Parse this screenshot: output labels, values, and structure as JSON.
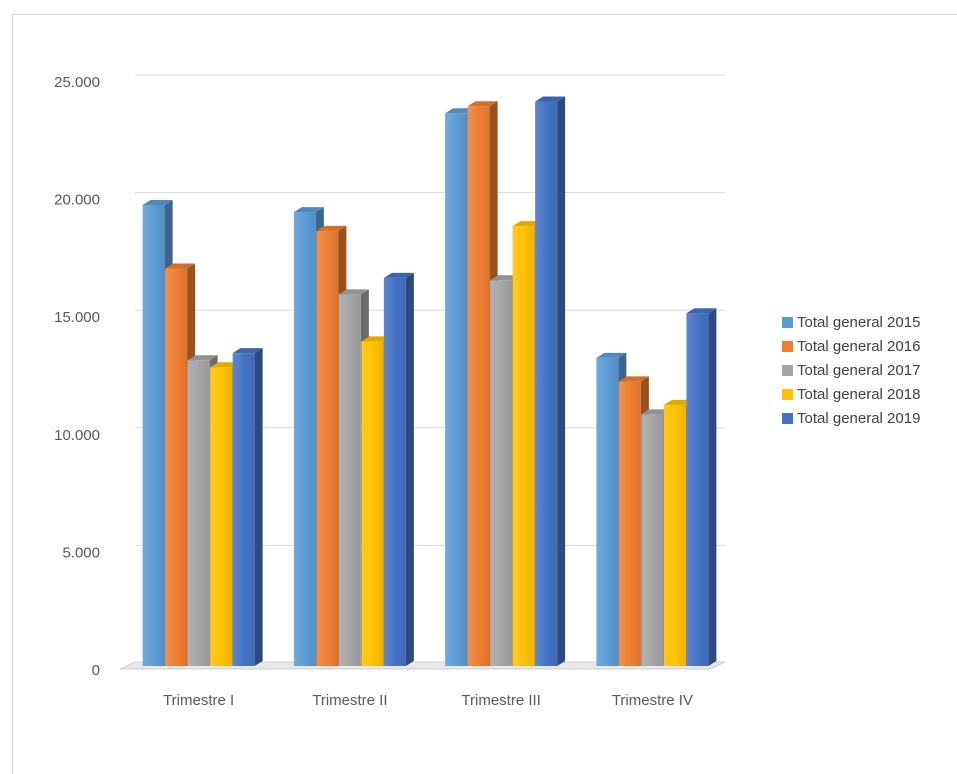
{
  "chart_data": {
    "type": "bar",
    "categories": [
      "Trimestre I",
      "Trimestre II",
      "Trimestre III",
      "Trimestre IV"
    ],
    "series": [
      {
        "name": "Total general 2015",
        "values": [
          19600,
          19300,
          23500,
          13100
        ],
        "color": "#5b9bd5"
      },
      {
        "name": "Total general 2016",
        "values": [
          16900,
          18500,
          23800,
          12100
        ],
        "color": "#ed7d31"
      },
      {
        "name": "Total general 2017",
        "values": [
          13000,
          15800,
          16400,
          10700
        ],
        "color": "#a5a5a5"
      },
      {
        "name": "Total general 2018",
        "values": [
          12700,
          13800,
          18700,
          11100
        ],
        "color": "#ffc000"
      },
      {
        "name": "Total general 2019",
        "values": [
          13300,
          16500,
          24000,
          15000
        ],
        "color": "#4472c4"
      }
    ],
    "yticks": [
      "0",
      "5.000",
      "10.000",
      "15.000",
      "20.000",
      "25.000"
    ],
    "ylim": [
      0,
      25000
    ],
    "grid": true,
    "legend_position": "right",
    "style": "3d-clustered-column"
  }
}
